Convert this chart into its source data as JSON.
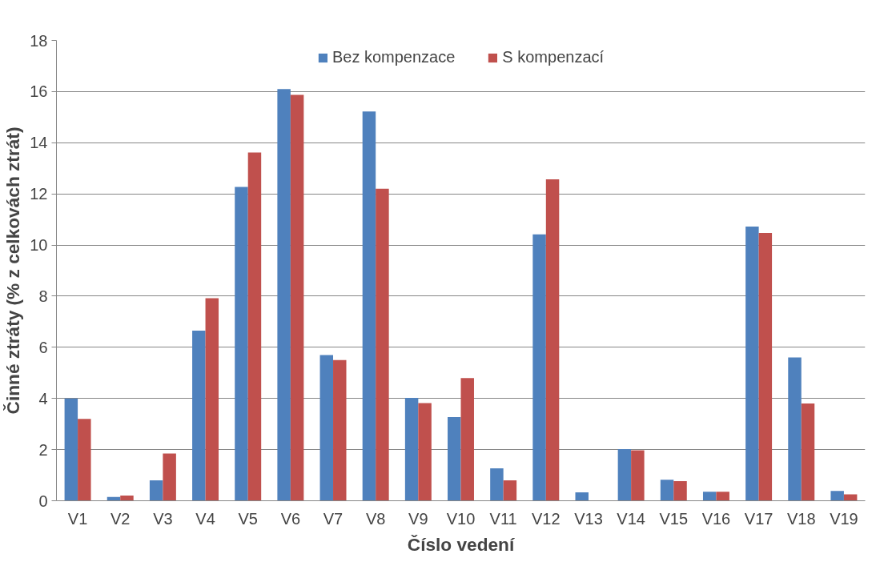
{
  "chart_data": {
    "type": "bar",
    "xlabel": "Číslo vedení",
    "ylabel": "Činné ztráty (% z celkovách ztrát)",
    "categories": [
      "V1",
      "V2",
      "V3",
      "V4",
      "V5",
      "V6",
      "V7",
      "V8",
      "V9",
      "V10",
      "V11",
      "V12",
      "V13",
      "V14",
      "V15",
      "V16",
      "V17",
      "V18",
      "V19"
    ],
    "series": [
      {
        "name": "Bez kompenzace",
        "color": "#4f81bd",
        "values": [
          4.0,
          0.15,
          0.8,
          6.65,
          12.27,
          16.1,
          5.7,
          15.22,
          4.02,
          3.27,
          1.27,
          10.42,
          0.33,
          2.02,
          0.82,
          0.35,
          10.72,
          5.6,
          0.38
        ]
      },
      {
        "name": "S kompenzací",
        "color": "#c0504d",
        "values": [
          3.2,
          0.2,
          1.85,
          7.92,
          13.62,
          15.87,
          5.5,
          12.2,
          3.82,
          4.8,
          0.8,
          12.57,
          0.0,
          1.97,
          0.77,
          0.35,
          10.47,
          3.8,
          0.25
        ]
      }
    ],
    "ylim": [
      0,
      18
    ],
    "yticks": [
      0,
      2,
      4,
      6,
      8,
      10,
      12,
      14,
      16,
      18
    ],
    "grid": "y",
    "legend": "top"
  }
}
